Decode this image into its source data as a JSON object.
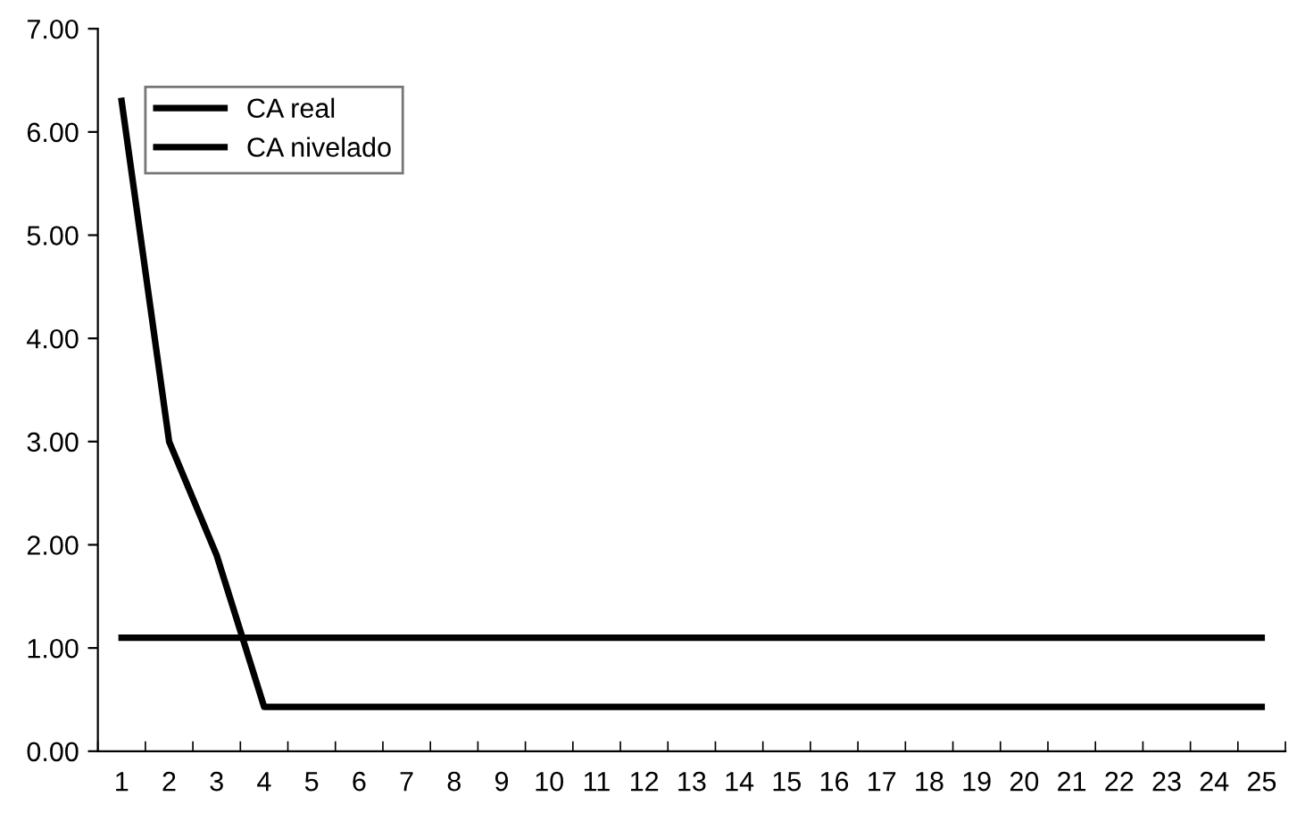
{
  "chart_data": {
    "type": "line",
    "categories": [
      "1",
      "2",
      "3",
      "4",
      "5",
      "6",
      "7",
      "8",
      "9",
      "10",
      "11",
      "12",
      "13",
      "14",
      "15",
      "16",
      "17",
      "18",
      "19",
      "20",
      "21",
      "22",
      "23",
      "24",
      "25"
    ],
    "series": [
      {
        "name": "CA real",
        "color": "#000000",
        "values": [
          6.3,
          3.0,
          1.9,
          0.43,
          0.43,
          0.43,
          0.43,
          0.43,
          0.43,
          0.43,
          0.43,
          0.43,
          0.43,
          0.43,
          0.43,
          0.43,
          0.43,
          0.43,
          0.43,
          0.43,
          0.43,
          0.43,
          0.43,
          0.43,
          0.43
        ]
      },
      {
        "name": "CA nivelado",
        "color": "#000000",
        "values": [
          1.1,
          1.1,
          1.1,
          1.1,
          1.1,
          1.1,
          1.1,
          1.1,
          1.1,
          1.1,
          1.1,
          1.1,
          1.1,
          1.1,
          1.1,
          1.1,
          1.1,
          1.1,
          1.1,
          1.1,
          1.1,
          1.1,
          1.1,
          1.1,
          1.1
        ]
      }
    ],
    "ylim": [
      0,
      7
    ],
    "yticks": [
      {
        "value": 0,
        "label": "0.00"
      },
      {
        "value": 1,
        "label": "1.00"
      },
      {
        "value": 2,
        "label": "2.00"
      },
      {
        "value": 3,
        "label": "3.00"
      },
      {
        "value": 4,
        "label": "4.00"
      },
      {
        "value": 5,
        "label": "5.00"
      },
      {
        "value": 6,
        "label": "6.00"
      },
      {
        "value": 7,
        "label": "7.00"
      }
    ],
    "grid": false,
    "legend": "top left",
    "marker": "none",
    "line_style": "solid"
  }
}
